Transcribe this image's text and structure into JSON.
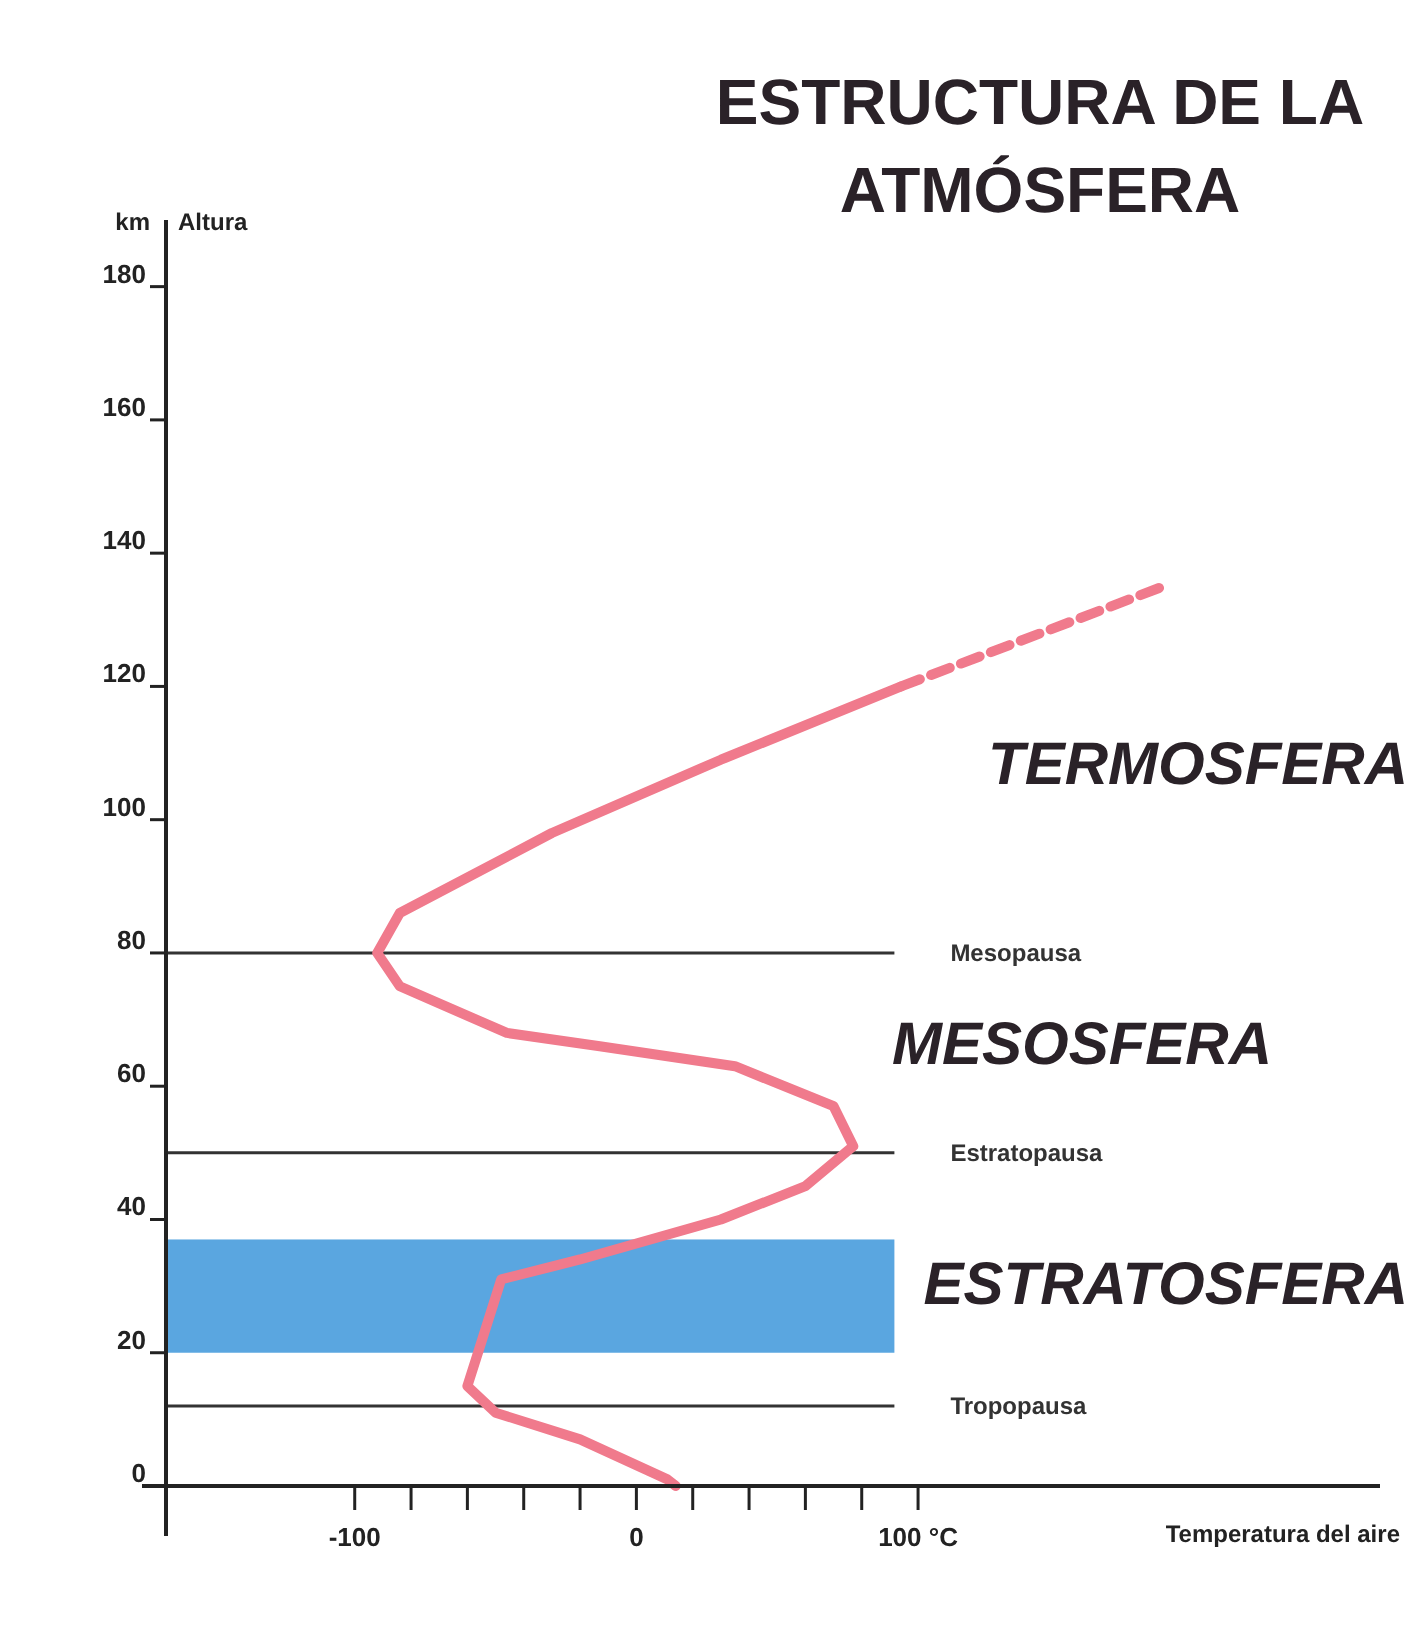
{
  "chart_data": {
    "type": "line",
    "title": "ESTRUCTURA DE LA ATMÓSFERA",
    "xlabel": "Temperatura del aire",
    "ylabel": "Altura",
    "annotations": [
      "km",
      "TERMOSFERA",
      "MESOSFERA",
      "ESTRATOSFERA"
    ],
    "xlim": [
      -167,
      264
    ],
    "ylim": [
      0,
      190
    ],
    "xticks": [
      {
        "value": -100,
        "label": "-100"
      },
      {
        "value": -80,
        "label": null
      },
      {
        "value": -60,
        "label": null
      },
      {
        "value": -40,
        "label": null
      },
      {
        "value": -20,
        "label": null
      },
      {
        "value": 0,
        "label": "0"
      },
      {
        "value": 20,
        "label": null
      },
      {
        "value": 40,
        "label": null
      },
      {
        "value": 60,
        "label": null
      },
      {
        "value": 80,
        "label": null
      },
      {
        "value": 100,
        "label": "100 °C"
      }
    ],
    "yticks": [
      0,
      20,
      40,
      60,
      80,
      100,
      120,
      140,
      160,
      180
    ],
    "grid": false,
    "ref_lines": [
      {
        "axis": "y",
        "value": 80,
        "label": "Mesopausa",
        "color": "#333333"
      },
      {
        "axis": "y",
        "value": 50,
        "label": "Estratopausa",
        "color": "#333333"
      },
      {
        "axis": "y",
        "value": 12,
        "label": "Tropopausa",
        "color": "#333333"
      }
    ],
    "bands": [
      {
        "axis": "y",
        "from": 20,
        "to": 37,
        "color": "#5aa6e0"
      }
    ],
    "series": [
      {
        "color": "#f07a8c",
        "line_style": "solid",
        "x": [
          14,
          11,
          -20,
          -50,
          -60,
          -57,
          -48,
          -20,
          30,
          60,
          77,
          70,
          35,
          -13,
          -46,
          -84,
          -92,
          -84,
          -30,
          30,
          94
        ],
        "values": [
          0,
          1,
          7,
          11,
          15,
          19,
          31,
          34,
          40,
          45,
          51,
          57,
          63,
          66,
          68,
          75,
          80,
          86,
          98,
          109,
          120
        ]
      },
      {
        "color": "#f07a8c",
        "line_style": "dashed",
        "x": [
          94,
          187
        ],
        "values": [
          120,
          135
        ]
      }
    ]
  }
}
